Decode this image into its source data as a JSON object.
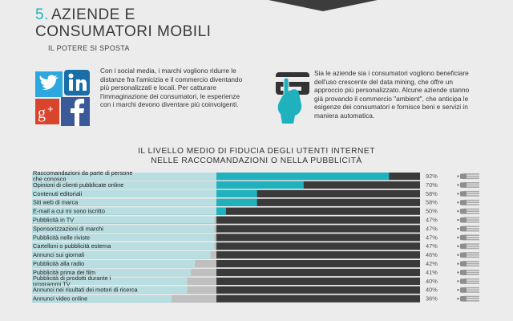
{
  "header": {
    "number": "5.",
    "title_line1": "AZIENDE E",
    "title_line2": "CONSUMATORI MOBILI",
    "subtitle": "IL POTERE SI SPOSTA"
  },
  "intro": {
    "left_text": "Con i social media, i marchi vogliono ridurre le distanze fra l'amicizia e il commercio diventando più personalizzati e locali. Per catturare l'immaginazione dei consumatori, le esperienze con i marchi devono diventare più coinvolgenti.",
    "right_text": "Sia le aziende sia i consumatori vogliono beneficiare dell'uso crescente del data mining, che offre un approccio più personalizzato. Alcune aziende stanno già provando il commercio \"ambient\", che anticipa le esigenze dei consumatori e fornisce beni e servizi in maniera automatica.",
    "icons": [
      "twitter-icon",
      "linkedin-icon",
      "google-plus-icon",
      "facebook-icon",
      "card-payment-icon"
    ]
  },
  "colors": {
    "accent": "#1fb2be",
    "dark": "#3a3a3a",
    "background": "#ececec"
  },
  "chart_data": {
    "type": "bar",
    "title_line1": "IL LIVELLO MEDIO DI FIDUCIA DEGLI UTENTI INTERNET",
    "title_line2": "NELLE RACCOMANDAZIONI O NELLA PUBBLICITÀ",
    "categories": [
      [
        "Raccomandazioni da parte di persone",
        "che conosco"
      ],
      [
        "Opinioni di clienti pubblicate online"
      ],
      [
        "Contenuti editoriali"
      ],
      [
        "Siti web di marca"
      ],
      [
        "E-mail a cui mi sono iscritto"
      ],
      [
        "Pubblicità in TV"
      ],
      [
        "Sponsorizzazioni di marchi"
      ],
      [
        "Pubblicità nelle riviste"
      ],
      [
        "Cartelloni o pubblicità esterna"
      ],
      [
        "Annunci sui giornali"
      ],
      [
        "Pubblicità alla radio"
      ],
      [
        "Pubblicità prima dei film"
      ],
      [
        "Pubblicità di prodotti durante i",
        "programmi TV"
      ],
      [
        "Annunci nei risultati dei motori di ricerca"
      ],
      [
        "Annunci video online"
      ]
    ],
    "values": [
      92,
      70,
      58,
      58,
      50,
      47,
      47,
      47,
      47,
      46,
      42,
      41,
      40,
      40,
      36
    ],
    "value_labels": [
      "92%",
      "70%",
      "58%",
      "58%",
      "50%",
      "47%",
      "47%",
      "47%",
      "47%",
      "46%",
      "42%",
      "41%",
      "40%",
      "40%",
      "36%"
    ],
    "xlim": [
      0,
      100
    ],
    "unit": "%",
    "colors": {
      "value": "#1fb2be",
      "remainder": "#3a3a3a"
    },
    "row_icon": "hand-pointer-icon"
  }
}
